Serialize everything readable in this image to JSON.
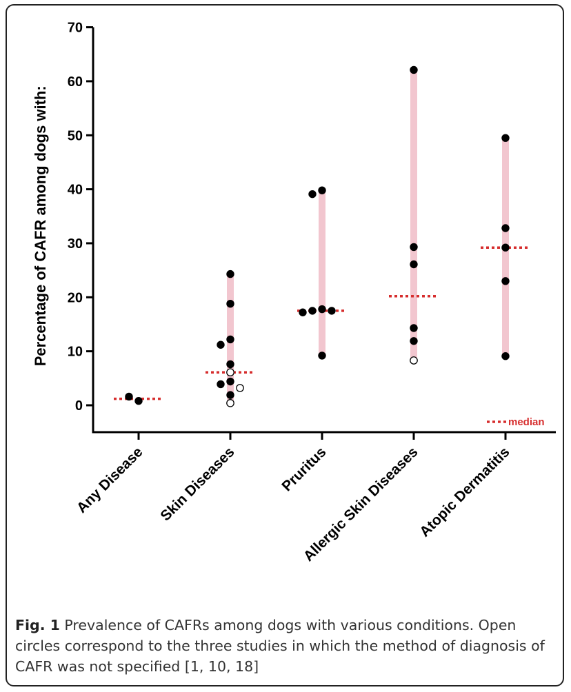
{
  "chart_data": {
    "type": "scatter",
    "ylabel": "Percentage of CAFR among dogs with:",
    "ylim": [
      -5,
      70
    ],
    "yticks": [
      0,
      10,
      20,
      30,
      40,
      50,
      60,
      70
    ],
    "categories": [
      "Any Disease",
      "Skin Diseases",
      "Pruritus",
      "Allergic Skin Diseases",
      "Atopic Dermatitis"
    ],
    "colors": {
      "range_bar": "#f2c6cf",
      "median": "#d62d2d",
      "point": "#000000"
    },
    "groups": [
      {
        "category": "Any Disease",
        "median": 1.2,
        "range": null,
        "points": [
          {
            "y": 0.8,
            "open": false
          },
          {
            "y": 1.6,
            "open": false
          }
        ]
      },
      {
        "category": "Skin Diseases",
        "median": 6.1,
        "range": [
          0.4,
          24.3
        ],
        "points": [
          {
            "y": 24.3,
            "open": false
          },
          {
            "y": 18.8,
            "open": false
          },
          {
            "y": 12.2,
            "open": false
          },
          {
            "y": 11.2,
            "open": false
          },
          {
            "y": 7.6,
            "open": false
          },
          {
            "y": 6.1,
            "open": true
          },
          {
            "y": 4.4,
            "open": false
          },
          {
            "y": 3.9,
            "open": false
          },
          {
            "y": 3.2,
            "open": true
          },
          {
            "y": 1.9,
            "open": false
          },
          {
            "y": 0.4,
            "open": true
          }
        ]
      },
      {
        "category": "Pruritus",
        "median": 17.5,
        "range": [
          9.2,
          39.8
        ],
        "points": [
          {
            "y": 39.8,
            "open": false
          },
          {
            "y": 39.1,
            "open": false
          },
          {
            "y": 17.8,
            "open": false
          },
          {
            "y": 17.5,
            "open": false
          },
          {
            "y": 17.5,
            "open": false
          },
          {
            "y": 17.2,
            "open": false
          },
          {
            "y": 9.2,
            "open": false
          }
        ]
      },
      {
        "category": "Allergic Skin Diseases",
        "median": 20.2,
        "range": [
          8.3,
          62.1
        ],
        "points": [
          {
            "y": 62.1,
            "open": false
          },
          {
            "y": 29.3,
            "open": false
          },
          {
            "y": 26.1,
            "open": false
          },
          {
            "y": 14.3,
            "open": false
          },
          {
            "y": 11.9,
            "open": false
          },
          {
            "y": 8.3,
            "open": true
          }
        ]
      },
      {
        "category": "Atopic Dermatitis",
        "median": 29.2,
        "range": [
          9.1,
          49.5
        ],
        "points": [
          {
            "y": 49.5,
            "open": false
          },
          {
            "y": 32.8,
            "open": false
          },
          {
            "y": 29.2,
            "open": false
          },
          {
            "y": 23.0,
            "open": false
          },
          {
            "y": 9.1,
            "open": false
          }
        ]
      }
    ],
    "legend": {
      "label": "median",
      "position": "bottom-right"
    }
  },
  "caption": {
    "label": "Fig. 1",
    "text": " Prevalence of CAFRs among dogs with various conditions. Open circles correspond to the three studies in which the method of diagnosis of CAFR was not specified [1, 10, 18]"
  }
}
